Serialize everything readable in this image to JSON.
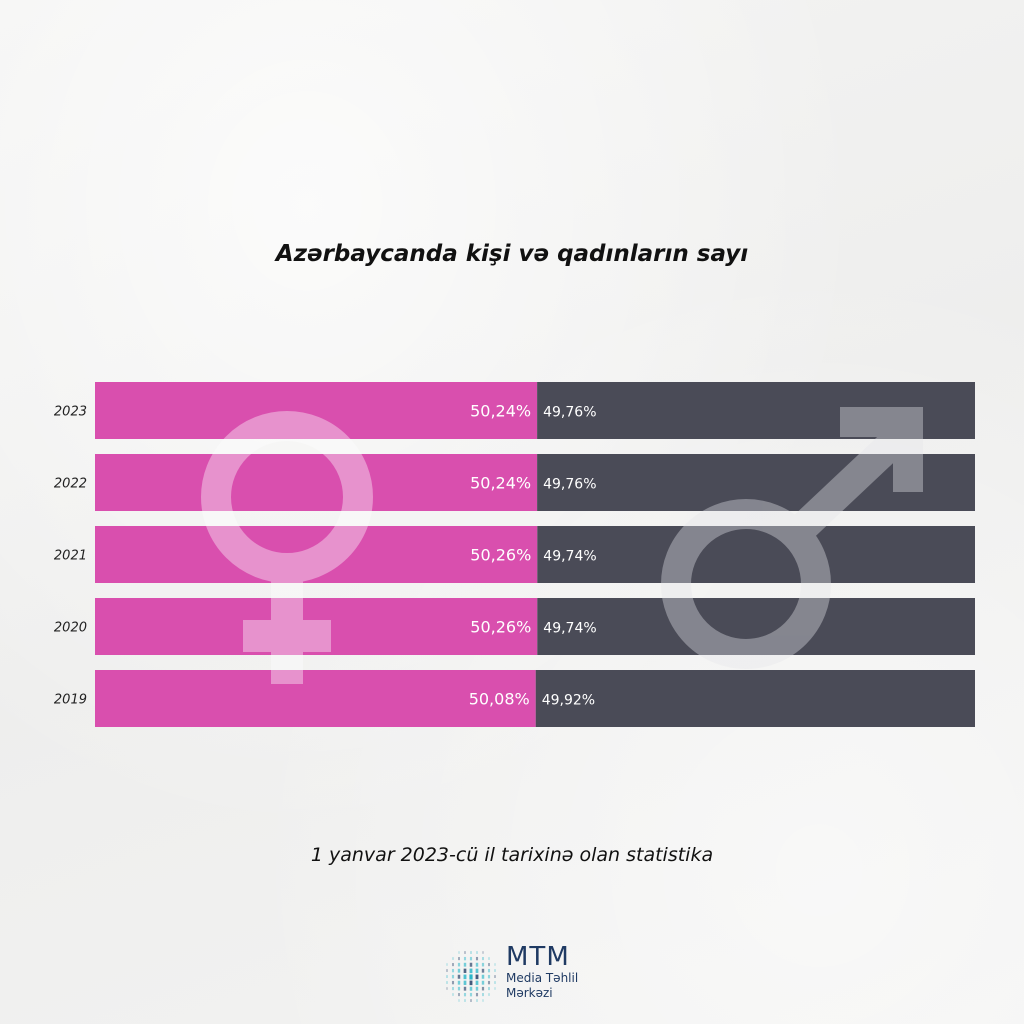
{
  "chart_data": {
    "type": "bar",
    "stacked": true,
    "orientation": "horizontal",
    "title": "Azərbaycanda kişi və qadınların sayı",
    "categories": [
      "2023",
      "2022",
      "2021",
      "2020",
      "2019"
    ],
    "series": [
      {
        "values": [
          50.24,
          50.24,
          50.26,
          50.26,
          50.08
        ],
        "labels": [
          "50,24%",
          "50,24%",
          "50,26%",
          "50,26%",
          "50,08%"
        ],
        "color": "#d94fae",
        "icon": "female-symbol-icon"
      },
      {
        "values": [
          49.76,
          49.76,
          49.74,
          49.74,
          49.92
        ],
        "labels": [
          "49,76%",
          "49,76%",
          "49,74%",
          "49,74%",
          "49,92%"
        ],
        "color": "#4a4b57",
        "icon": "male-symbol-icon"
      }
    ],
    "xlim": [
      0,
      100
    ]
  },
  "footnote": "1 yanvar 2023-cü il tarixinə olan statistika",
  "logo": {
    "name": "MTM",
    "line1": "Media Təhlil",
    "line2": "Mərkəzi",
    "color": "#1f3a63",
    "accent": "#2bb7c9"
  }
}
